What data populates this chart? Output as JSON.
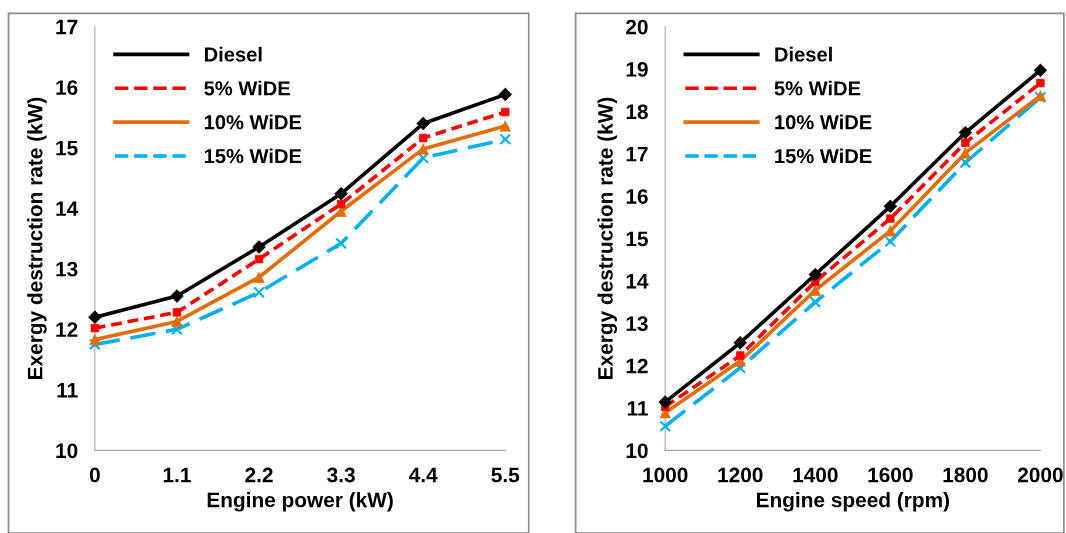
{
  "chart_data": [
    {
      "type": "line",
      "xlabel": "Engine power (kW)",
      "ylabel": "Exergy destruction rate (kW)",
      "x": [
        0,
        1.1,
        2.2,
        3.3,
        4.4,
        5.5
      ],
      "xlim": [
        0,
        5.5
      ],
      "xticks": [
        {
          "value": 0,
          "label": "0"
        },
        1.1,
        2.2,
        3.3,
        4.4,
        5.5
      ],
      "ylim": [
        10,
        17
      ],
      "yticks": [
        10,
        11,
        12,
        13,
        14,
        15,
        16,
        17
      ],
      "grid": false,
      "legend": "top left",
      "series": [
        {
          "name": "Diesel",
          "color": "#000000",
          "marker": "diamond",
          "line_style": "solid",
          "values": [
            12.2,
            12.55,
            13.36,
            14.24,
            15.4,
            15.88
          ]
        },
        {
          "name": "5% WiDE",
          "color": "#ff0000",
          "marker": "square",
          "line_style": "dashed",
          "values": [
            12.02,
            12.28,
            13.16,
            14.07,
            15.16,
            15.59
          ]
        },
        {
          "name": "10% WiDE",
          "color": "#e46c0a",
          "marker": "triangle",
          "line_style": "solid",
          "values": [
            11.83,
            12.13,
            12.86,
            13.95,
            14.98,
            15.36
          ]
        },
        {
          "name": "15% WiDE",
          "color": "#00b0f0",
          "marker": "cross",
          "line_style": "longdash",
          "values": [
            11.75,
            12.0,
            12.61,
            13.42,
            14.83,
            15.14
          ]
        }
      ]
    },
    {
      "type": "line",
      "xlabel": "Engine speed (rpm)",
      "ylabel": "Exergy destruction rate (kW)",
      "x": [
        1000,
        1200,
        1400,
        1600,
        1800,
        2000
      ],
      "xlim": [
        1000,
        2000
      ],
      "xticks": [
        1000,
        1200,
        1400,
        1600,
        1800,
        2000
      ],
      "ylim": [
        10,
        20
      ],
      "yticks": [
        10,
        11,
        12,
        13,
        14,
        15,
        16,
        17,
        18,
        19,
        20
      ],
      "grid": false,
      "legend": "top left",
      "series": [
        {
          "name": "Diesel",
          "color": "#000000",
          "marker": "diamond",
          "line_style": "solid",
          "values": [
            11.14,
            12.54,
            14.15,
            15.76,
            17.5,
            18.97
          ]
        },
        {
          "name": "5% WiDE",
          "color": "#ff0000",
          "marker": "square",
          "line_style": "dashed",
          "values": [
            11.03,
            12.24,
            13.98,
            15.47,
            17.26,
            18.67
          ]
        },
        {
          "name": "10% WiDE",
          "color": "#e46c0a",
          "marker": "triangle",
          "line_style": "solid",
          "values": [
            10.89,
            12.11,
            13.78,
            15.18,
            17.02,
            18.37
          ]
        },
        {
          "name": "15% WiDE",
          "color": "#00b0f0",
          "marker": "cross",
          "line_style": "longdash",
          "values": [
            10.57,
            11.95,
            13.5,
            14.93,
            16.79,
            18.33
          ]
        }
      ]
    }
  ]
}
